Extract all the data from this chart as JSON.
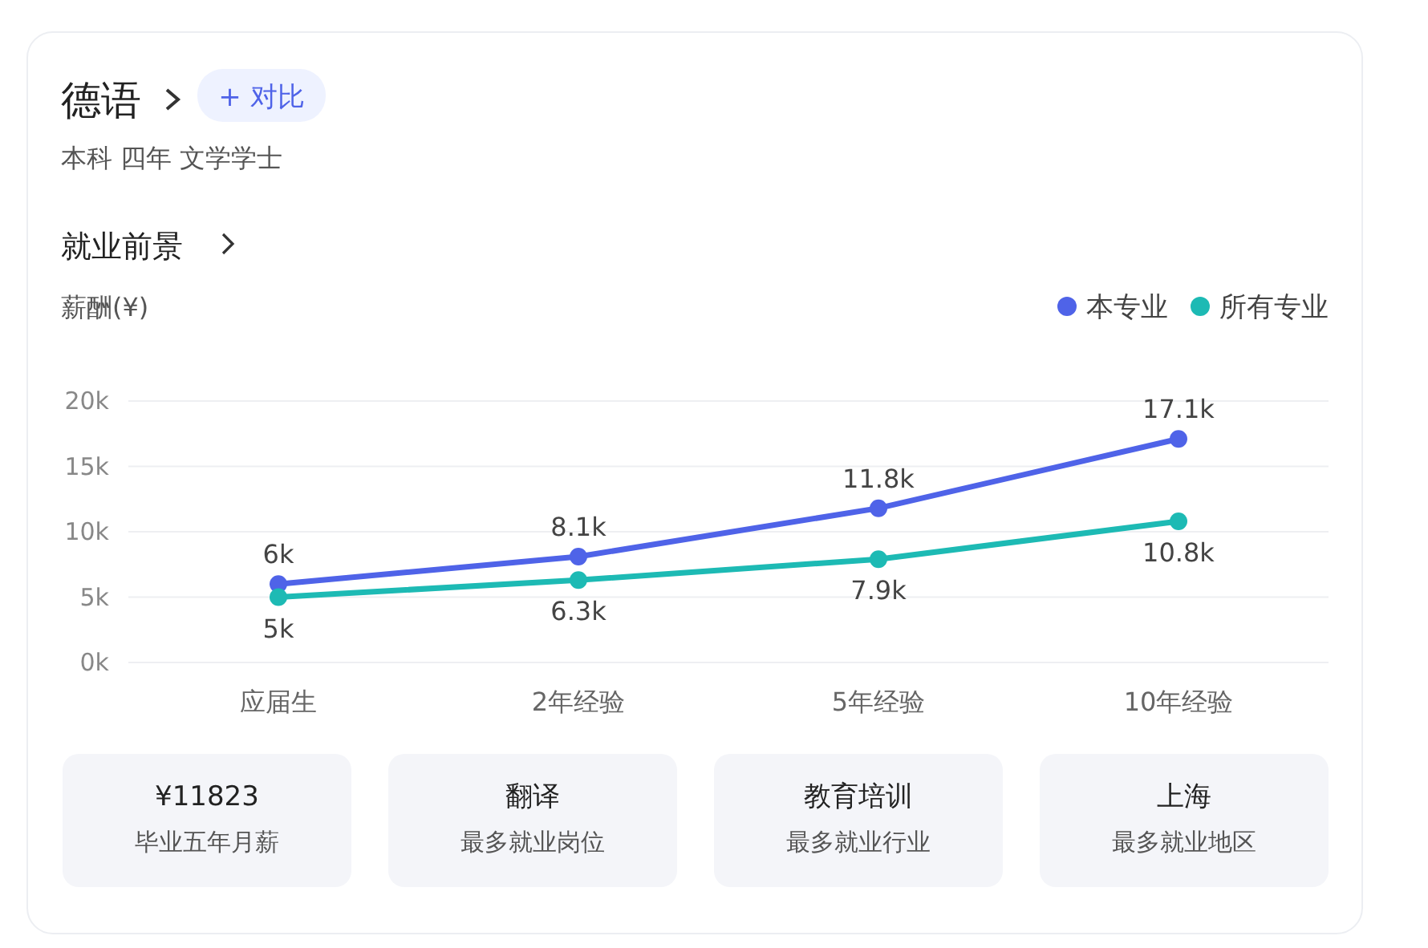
{
  "chart_data": {
    "type": "line",
    "title": "德语",
    "subtitle": "本科 四年 文学学士",
    "ylabel": "薪酬(¥)",
    "categories": [
      "应届生",
      "2年经验",
      "5年经验",
      "10年经验"
    ],
    "series": [
      {
        "name": "本专业",
        "color": "#4f63e8",
        "values": [
          6000,
          8100,
          11800,
          17100
        ],
        "value_labels": [
          "6k",
          "8.1k",
          "11.8k",
          "17.1k"
        ]
      },
      {
        "name": "所有专业",
        "color": "#1dbab4",
        "values": [
          5000,
          6300,
          7900,
          10800
        ],
        "value_labels": [
          "5k",
          "6.3k",
          "7.9k",
          "10.8k"
        ]
      }
    ],
    "ylim": [
      0,
      20000
    ],
    "yticks": [
      {
        "value": 0,
        "label": "0k"
      },
      {
        "value": 5000,
        "label": "5k"
      },
      {
        "value": 10000,
        "label": "10k"
      },
      {
        "value": 15000,
        "label": "15k"
      },
      {
        "value": 20000,
        "label": "20k"
      }
    ],
    "grid": "y",
    "legend": "top right",
    "marker": "circle",
    "line_style": "solid",
    "annotations": [
      "+ 对比",
      "就业前景",
      "¥11823",
      "毕业五年月薪",
      "翻译",
      "最多就业岗位",
      "教育培训",
      "最多就业行业",
      "上海",
      "最多就业地区"
    ]
  }
}
